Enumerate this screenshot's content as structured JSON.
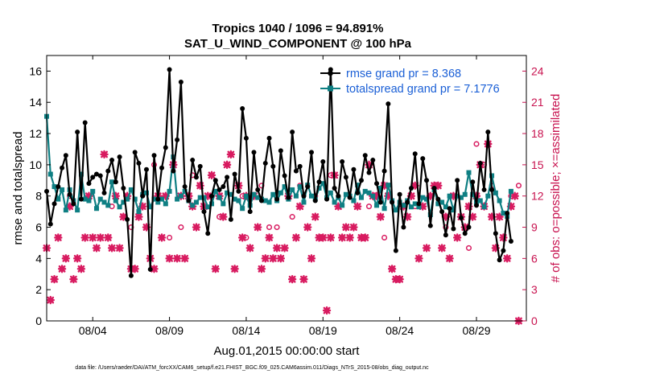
{
  "chart_data": {
    "type": "line",
    "title": "Tropics 1040 / 1096 = 94.891%",
    "subtitle": "SAT_U_WIND_COMPONENT @ 100 hPa",
    "xlabel": "Aug.01,2015 00:00:00 start",
    "ylabel": "rmse and totalspread",
    "ylabel_right": "# of obs: o=possible; ×=assimilated",
    "footnote": "data file: /Users/raeder/DAI/ATM_forcXX/CAM6_setup/f.e21.FHIST_BGC.f09_025.CAM6assim.011/Diags_NTrS_2015-08/obs_diag_output.nc",
    "xlim": [
      1,
      32.25
    ],
    "ylim": [
      0,
      17
    ],
    "ylim_right": [
      0,
      25.5
    ],
    "x_ticks": [
      4,
      9,
      14,
      19,
      24,
      29
    ],
    "x_tick_labels": [
      "08/04",
      "08/09",
      "08/14",
      "08/19",
      "08/24",
      "08/29"
    ],
    "y_ticks": [
      0,
      2,
      4,
      6,
      8,
      10,
      12,
      14,
      16
    ],
    "y_ticks_right": [
      0,
      3,
      6,
      9,
      12,
      15,
      18,
      21,
      24
    ],
    "legend_position": "top-right",
    "x_step_days": 0.25,
    "x_start": 1.0,
    "series": [
      {
        "name": "rmse grand pr = 8.368",
        "axis": "left",
        "color": "#000000",
        "values": [
          8.3,
          6.2,
          7.5,
          8.6,
          9.8,
          10.6,
          8.1,
          7.5,
          12.1,
          7.8,
          12.7,
          8.8,
          9.2,
          9.4,
          9.3,
          8.2,
          9.6,
          10.3,
          8.9,
          10.5,
          8.5,
          6.5,
          2.9,
          10.8,
          10.1,
          8.0,
          9.7,
          3.3,
          10.6,
          7.8,
          9.8,
          11.1,
          16.1,
          9.6,
          11.6,
          15.3,
          8.6,
          7.7,
          10.3,
          9.2,
          9.9,
          7.0,
          5.6,
          8.0,
          9.0,
          8.4,
          8.6,
          9.2,
          6.5,
          9.4,
          8.3,
          13.6,
          11.7,
          7.0,
          10.8,
          8.4,
          7.7,
          10.1,
          11.7,
          9.9,
          7.8,
          10.9,
          9.3,
          7.9,
          12.1,
          9.6,
          9.9,
          8.0,
          8.6,
          10.8,
          7.7,
          8.9,
          10.2,
          7.8,
          16.1,
          8.5,
          8.0,
          10.2,
          9.2,
          7.9,
          9.7,
          8.2,
          9.0,
          10.6,
          9.5,
          10.3,
          8.8,
          7.6,
          9.6,
          13.9,
          7.6,
          4.5,
          8.1,
          6.0,
          7.6,
          8.5,
          10.7,
          7.5,
          10.4,
          9.0,
          6.1,
          8.5,
          7.8,
          7.0,
          5.5,
          7.2,
          5.9,
          9.0,
          6.6,
          5.6,
          6.0,
          8.9,
          7.4,
          10.1,
          8.4,
          12.1,
          8.4,
          5.6,
          3.9,
          4.5,
          6.9,
          5.1
        ]
      },
      {
        "name": "totalspread grand pr = 7.1776",
        "axis": "left",
        "color": "#0e7f83",
        "values": [
          13.1,
          9.4,
          8.6,
          7.8,
          8.4,
          7.1,
          8.4,
          7.7,
          7.1,
          9.4,
          7.8,
          7.7,
          8.3,
          7.2,
          7.8,
          7.6,
          7.4,
          8.9,
          7.7,
          7.3,
          7.6,
          7.8,
          8.4,
          7.8,
          7.0,
          8.1,
          8.2,
          7.3,
          7.8,
          7.6,
          7.8,
          7.5,
          8.3,
          10.5,
          7.8,
          8.0,
          8.3,
          7.7,
          7.4,
          7.6,
          7.9,
          7.9,
          7.3,
          7.5,
          8.3,
          7.9,
          7.5,
          8.2,
          8.1,
          7.8,
          7.7,
          7.2,
          8.0,
          7.4,
          8.1,
          7.9,
          7.8,
          7.7,
          7.6,
          8.1,
          7.7,
          8.2,
          8.6,
          7.8,
          8.4,
          8.0,
          8.6,
          7.6,
          8.7,
          8.0,
          7.8,
          8.5,
          8.8,
          7.9,
          8.2,
          7.6,
          7.9,
          7.4,
          8.1,
          8.0,
          7.7,
          8.7,
          7.9,
          8.3,
          8.2,
          8.0,
          7.4,
          8.5,
          7.2,
          8.7,
          7.7,
          7.1,
          7.6,
          7.4,
          7.7,
          7.3,
          7.5,
          7.3,
          7.9,
          7.8,
          6.8,
          8.4,
          7.5,
          7.6,
          7.3,
          8.0,
          7.1,
          8.0,
          7.9,
          8.1,
          9.5,
          8.1,
          7.6,
          7.7,
          7.3,
          8.0,
          9.3,
          8.2,
          7.7,
          6.9,
          6.7,
          8.3
        ]
      },
      {
        "name": "obs possible",
        "axis": "right",
        "marker": "o",
        "color": "#d81b60",
        "x": [
          2.5,
          5.25,
          6.5,
          8.0,
          9.0,
          9.75,
          10.5,
          11.0,
          12.25,
          13.75,
          14.0,
          15.0,
          15.5,
          16.0,
          17.0,
          17.5,
          18.5,
          19.5,
          22.0,
          23.0,
          23.5,
          25.0,
          26.0,
          27.0,
          28.5,
          29.0,
          29.5,
          30.0,
          31.25,
          31.75
        ],
        "values": [
          12,
          11,
          9,
          15,
          8,
          9,
          14,
          13,
          10,
          12,
          8,
          13,
          9,
          9,
          10,
          13,
          12,
          14,
          11,
          8,
          5,
          11,
          12,
          9,
          7,
          17,
          15,
          13,
          12,
          13
        ]
      },
      {
        "name": "obs assimilated",
        "axis": "right",
        "marker": "x",
        "color": "#d81b60",
        "x": [
          1.0,
          1.25,
          1.5,
          1.75,
          2.0,
          2.25,
          2.5,
          2.75,
          3.0,
          3.25,
          3.5,
          3.75,
          4.0,
          4.25,
          4.5,
          4.75,
          5.0,
          5.25,
          5.5,
          5.75,
          6.0,
          6.25,
          6.5,
          6.75,
          7.0,
          7.25,
          7.5,
          7.75,
          8.0,
          8.25,
          8.5,
          8.75,
          9.0,
          9.25,
          9.5,
          9.75,
          10.0,
          10.25,
          10.5,
          10.75,
          11.0,
          11.25,
          11.5,
          11.75,
          12.0,
          12.25,
          12.5,
          12.75,
          13.0,
          13.25,
          13.5,
          13.75,
          14.0,
          14.25,
          14.5,
          14.75,
          15.0,
          15.25,
          15.5,
          15.75,
          16.0,
          16.25,
          16.5,
          16.75,
          17.0,
          17.25,
          17.5,
          17.75,
          18.0,
          18.25,
          18.5,
          18.75,
          19.0,
          19.25,
          19.5,
          19.75,
          20.0,
          20.25,
          20.5,
          20.75,
          21.0,
          21.25,
          21.5,
          21.75,
          22.0,
          22.25,
          22.5,
          22.75,
          23.0,
          23.25,
          23.5,
          23.75,
          24.0,
          24.25,
          24.5,
          24.75,
          25.0,
          25.25,
          25.5,
          25.75,
          26.0,
          26.25,
          26.5,
          26.75,
          27.0,
          27.25,
          27.5,
          27.75,
          28.0,
          28.25,
          28.5,
          28.75,
          29.0,
          29.25,
          29.5,
          29.75,
          30.0,
          30.25,
          30.5,
          30.75,
          31.0,
          31.25,
          31.5,
          31.75
        ],
        "values": [
          7,
          2,
          4,
          8,
          5,
          6,
          11,
          4,
          6,
          5,
          8,
          12,
          8,
          7,
          8,
          16,
          8,
          7,
          12,
          7,
          10,
          12,
          5,
          5,
          10,
          11,
          9,
          6,
          5,
          12,
          8,
          12,
          6,
          15,
          6,
          12,
          6,
          12,
          11,
          9,
          13,
          11,
          12,
          14,
          5,
          12,
          10,
          15,
          16,
          5,
          13,
          8,
          12,
          7,
          12,
          9,
          5,
          6,
          8,
          6,
          7,
          6,
          7,
          12,
          4,
          8,
          11,
          4,
          9,
          6,
          10,
          8,
          8,
          1,
          8,
          14,
          11,
          8,
          9,
          8,
          9,
          11,
          8,
          8,
          15,
          12,
          12,
          10,
          13,
          12,
          5,
          4,
          4,
          11,
          10,
          12,
          13,
          6,
          11,
          7,
          12,
          13,
          13,
          7,
          10,
          6,
          12,
          8,
          10,
          9,
          11,
          10,
          12,
          15,
          11,
          17,
          10,
          7,
          10,
          8,
          6,
          11,
          12,
          0
        ]
      }
    ]
  }
}
